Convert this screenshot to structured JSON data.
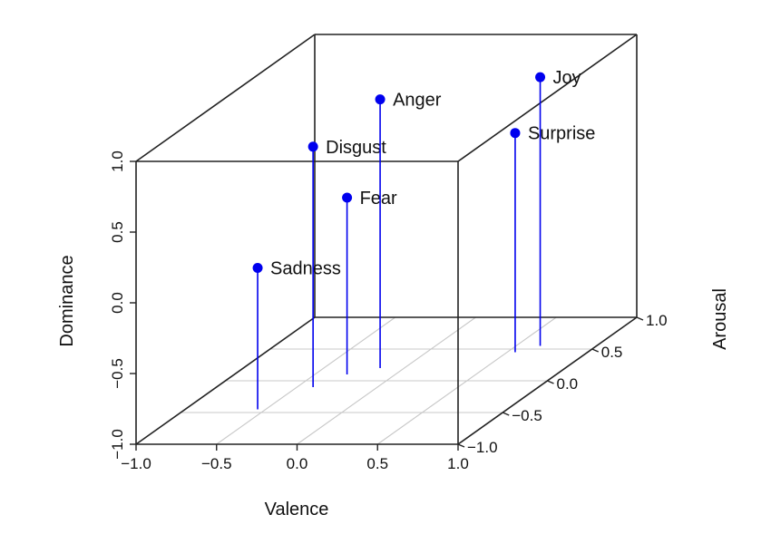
{
  "chart_data": {
    "type": "scatter3d",
    "xlabel": "Valence",
    "ylabel": "Arousal",
    "zlabel": "Dominance",
    "xlim": [
      -1.0,
      1.0
    ],
    "ylim": [
      -1.0,
      1.0
    ],
    "zlim": [
      -1.0,
      1.0
    ],
    "x_ticks": [
      "−1.0",
      "−0.5",
      "0.0",
      "0.5",
      "1.0"
    ],
    "y_ticks": [
      "−1.0",
      "−0.5",
      "0.0",
      "0.5",
      "1.0"
    ],
    "z_ticks": [
      "−1.0",
      "−0.5",
      "0.0",
      "0.5",
      "1.0"
    ],
    "grid": "floor",
    "point_color": "#0000ee",
    "points": [
      {
        "label": "Sadness",
        "valence": -0.55,
        "arousal": -0.45,
        "dominance": 0.0
      },
      {
        "label": "Disgust",
        "valence": -0.4,
        "arousal": -0.1,
        "dominance": 0.7
      },
      {
        "label": "Fear",
        "valence": -0.3,
        "arousal": 0.1,
        "dominance": 0.25
      },
      {
        "label": "Anger",
        "valence": -0.15,
        "arousal": 0.2,
        "dominance": 0.9
      },
      {
        "label": "Surprise",
        "valence": 0.55,
        "arousal": 0.45,
        "dominance": 0.55
      },
      {
        "label": "Joy",
        "valence": 0.65,
        "arousal": 0.55,
        "dominance": 0.9
      }
    ]
  }
}
